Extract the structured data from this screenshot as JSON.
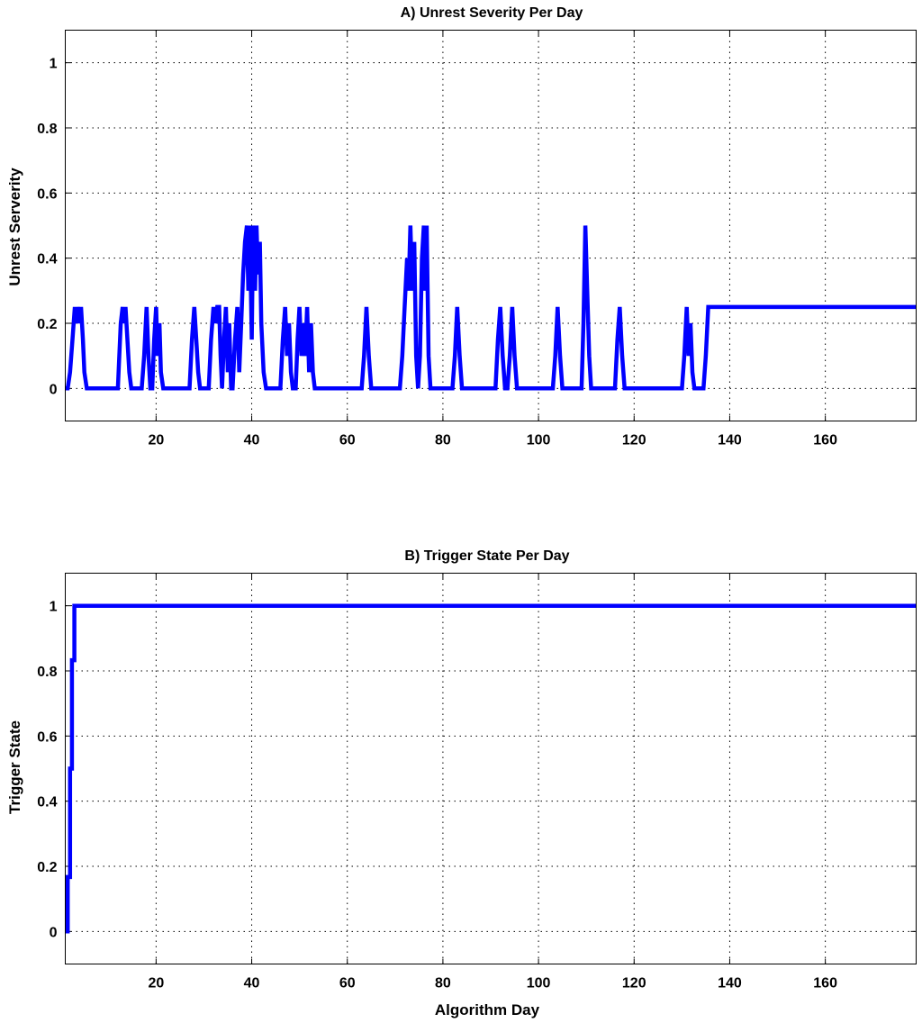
{
  "chart_data": [
    {
      "type": "line",
      "title": "A) Unrest Severity Per Day",
      "xlabel": "",
      "ylabel": "Unrest Serverity",
      "xlim": [
        1,
        179
      ],
      "ylim": [
        -0.1,
        1.1
      ],
      "xticks": [
        20,
        40,
        60,
        80,
        100,
        120,
        140,
        160
      ],
      "yticks": [
        0,
        0.2,
        0.4,
        0.6,
        0.8,
        1
      ],
      "ytick_labels": [
        "0",
        "0.2",
        "0.4",
        "0.6",
        "0.8",
        "1"
      ],
      "grid": true,
      "series": [
        {
          "color": "#0000ff",
          "points": [
            [
              1,
              0
            ],
            [
              1.5,
              0
            ],
            [
              2,
              0.05
            ],
            [
              2.5,
              0.15
            ],
            [
              3,
              0.25
            ],
            [
              3.3,
              0.2
            ],
            [
              3.6,
              0.25
            ],
            [
              4,
              0.2
            ],
            [
              4.3,
              0.25
            ],
            [
              4.7,
              0.15
            ],
            [
              5,
              0.05
            ],
            [
              5.5,
              0
            ],
            [
              12,
              0
            ],
            [
              12.3,
              0.1
            ],
            [
              12.6,
              0.2
            ],
            [
              13,
              0.25
            ],
            [
              13.3,
              0.2
            ],
            [
              13.6,
              0.25
            ],
            [
              14,
              0.15
            ],
            [
              14.4,
              0.05
            ],
            [
              14.8,
              0
            ],
            [
              16,
              0
            ],
            [
              17,
              0
            ],
            [
              17.5,
              0.1
            ],
            [
              18,
              0.25
            ],
            [
              18.4,
              0.1
            ],
            [
              18.8,
              0
            ],
            [
              19.2,
              0
            ],
            [
              19.6,
              0.15
            ],
            [
              20,
              0.25
            ],
            [
              20.3,
              0.1
            ],
            [
              20.7,
              0.2
            ],
            [
              21,
              0.05
            ],
            [
              21.5,
              0
            ],
            [
              26,
              0
            ],
            [
              27,
              0
            ],
            [
              27.5,
              0.15
            ],
            [
              28,
              0.25
            ],
            [
              28.4,
              0.15
            ],
            [
              28.8,
              0.05
            ],
            [
              29.2,
              0
            ],
            [
              30.5,
              0
            ],
            [
              31,
              0
            ],
            [
              31.5,
              0.15
            ],
            [
              32,
              0.25
            ],
            [
              32.4,
              0.2
            ],
            [
              32.8,
              0.25
            ],
            [
              33.2,
              0.25
            ],
            [
              33.5,
              0.1
            ],
            [
              33.8,
              0
            ],
            [
              34.2,
              0.15
            ],
            [
              34.6,
              0.25
            ],
            [
              35,
              0.05
            ],
            [
              35.3,
              0.2
            ],
            [
              35.7,
              0
            ],
            [
              36,
              0
            ],
            [
              36.5,
              0.15
            ],
            [
              37,
              0.25
            ],
            [
              37.4,
              0.05
            ],
            [
              37.8,
              0.2
            ],
            [
              38.2,
              0.35
            ],
            [
              38.6,
              0.45
            ],
            [
              39,
              0.5
            ],
            [
              39.3,
              0.3
            ],
            [
              39.6,
              0.5
            ],
            [
              40,
              0.15
            ],
            [
              40.3,
              0.5
            ],
            [
              40.7,
              0.3
            ],
            [
              41,
              0.5
            ],
            [
              41.3,
              0.35
            ],
            [
              41.7,
              0.45
            ],
            [
              42,
              0.2
            ],
            [
              42.5,
              0.05
            ],
            [
              43,
              0
            ],
            [
              45.5,
              0
            ],
            [
              46,
              0
            ],
            [
              46.5,
              0.15
            ],
            [
              47,
              0.25
            ],
            [
              47.4,
              0.1
            ],
            [
              47.8,
              0.2
            ],
            [
              48.2,
              0.05
            ],
            [
              48.6,
              0
            ],
            [
              49.2,
              0
            ],
            [
              49.6,
              0.15
            ],
            [
              50,
              0.25
            ],
            [
              50.4,
              0.1
            ],
            [
              50.8,
              0.2
            ],
            [
              51.2,
              0.1
            ],
            [
              51.6,
              0.25
            ],
            [
              52,
              0.05
            ],
            [
              52.4,
              0.2
            ],
            [
              52.8,
              0.05
            ],
            [
              53.2,
              0
            ],
            [
              55,
              0
            ],
            [
              63,
              0
            ],
            [
              63.5,
              0.1
            ],
            [
              64,
              0.25
            ],
            [
              64.5,
              0.1
            ],
            [
              65,
              0
            ],
            [
              71,
              0
            ],
            [
              71.5,
              0.1
            ],
            [
              72,
              0.25
            ],
            [
              72.5,
              0.4
            ],
            [
              72.8,
              0.3
            ],
            [
              73.2,
              0.5
            ],
            [
              73.6,
              0.3
            ],
            [
              74,
              0.45
            ],
            [
              74.4,
              0.1
            ],
            [
              74.8,
              0
            ],
            [
              75.2,
              0.1
            ],
            [
              75.6,
              0.4
            ],
            [
              76,
              0.5
            ],
            [
              76.3,
              0.3
            ],
            [
              76.6,
              0.5
            ],
            [
              77,
              0.1
            ],
            [
              77.4,
              0
            ],
            [
              82,
              0
            ],
            [
              82.5,
              0.1
            ],
            [
              83,
              0.25
            ],
            [
              83.5,
              0.1
            ],
            [
              84,
              0
            ],
            [
              91,
              0
            ],
            [
              91.5,
              0.15
            ],
            [
              92,
              0.25
            ],
            [
              92.5,
              0.1
            ],
            [
              93,
              0
            ],
            [
              93.5,
              0
            ],
            [
              94,
              0.1
            ],
            [
              94.5,
              0.25
            ],
            [
              95,
              0.1
            ],
            [
              95.5,
              0
            ],
            [
              103,
              0
            ],
            [
              103.5,
              0.1
            ],
            [
              104,
              0.25
            ],
            [
              104.5,
              0.1
            ],
            [
              105,
              0
            ],
            [
              109,
              0
            ],
            [
              109.4,
              0.2
            ],
            [
              109.8,
              0.5
            ],
            [
              110.2,
              0.3
            ],
            [
              110.6,
              0.1
            ],
            [
              111,
              0
            ],
            [
              116,
              0
            ],
            [
              116.5,
              0.15
            ],
            [
              117,
              0.25
            ],
            [
              117.5,
              0.1
            ],
            [
              118,
              0
            ],
            [
              130,
              0
            ],
            [
              130.5,
              0.1
            ],
            [
              131,
              0.25
            ],
            [
              131.4,
              0.1
            ],
            [
              131.8,
              0.2
            ],
            [
              132.2,
              0.05
            ],
            [
              132.6,
              0
            ],
            [
              134.5,
              0
            ],
            [
              135,
              0.1
            ],
            [
              135.5,
              0.25
            ],
            [
              136,
              0.25
            ],
            [
              179,
              0.25
            ]
          ]
        }
      ]
    },
    {
      "type": "line",
      "title": "B) Trigger State Per Day",
      "xlabel": "Algorithm Day",
      "ylabel": "Trigger State",
      "xlim": [
        1,
        179
      ],
      "ylim": [
        -0.1,
        1.1
      ],
      "xticks": [
        20,
        40,
        60,
        80,
        100,
        120,
        140,
        160
      ],
      "yticks": [
        0,
        0.2,
        0.4,
        0.6,
        0.8,
        1
      ],
      "ytick_labels": [
        "0",
        "0.2",
        "0.4",
        "0.6",
        "0.8",
        "1"
      ],
      "grid": true,
      "series": [
        {
          "color": "#0000ff",
          "points": [
            [
              1,
              0
            ],
            [
              1.5,
              0
            ],
            [
              1.5,
              0.167
            ],
            [
              2,
              0.167
            ],
            [
              2,
              0.5
            ],
            [
              2.4,
              0.5
            ],
            [
              2.4,
              0.833
            ],
            [
              2.9,
              0.833
            ],
            [
              2.9,
              1
            ],
            [
              179,
              1
            ]
          ]
        }
      ]
    }
  ]
}
